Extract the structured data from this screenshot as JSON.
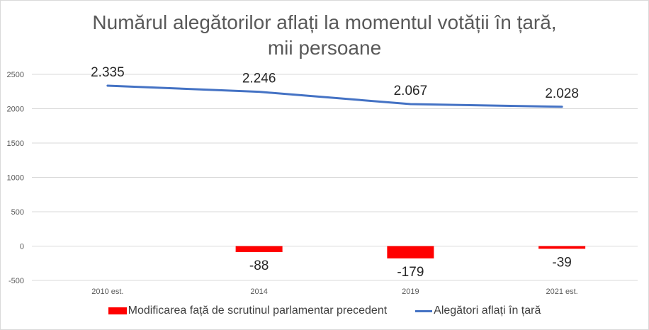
{
  "chart_data": {
    "type": "bar+line",
    "title_lines": [
      "Numărul alegătorilor aflați la momentul votății în țară,",
      "mii persoane"
    ],
    "categories": [
      "2010 est.",
      "2014",
      "2019",
      "2021 est."
    ],
    "series": [
      {
        "name": "Modificarea față de scrutinul parlamentar precedent",
        "type": "bar",
        "color": "#ff0000",
        "values": [
          null,
          -88,
          -179,
          -39
        ],
        "labels": [
          "",
          "-88",
          "-179",
          "-39"
        ]
      },
      {
        "name": "Alegători aflați în țară",
        "type": "line",
        "color": "#4472c4",
        "values": [
          2335,
          2246,
          2067,
          2028
        ],
        "labels": [
          "2.335",
          "2.246",
          "2.067",
          "2.028"
        ]
      }
    ],
    "ylim": [
      -500,
      2500
    ],
    "yticks": [
      "-500",
      "0",
      "500",
      "1000",
      "1500",
      "2000",
      "2500"
    ],
    "grid": true,
    "legend_position": "bottom"
  }
}
